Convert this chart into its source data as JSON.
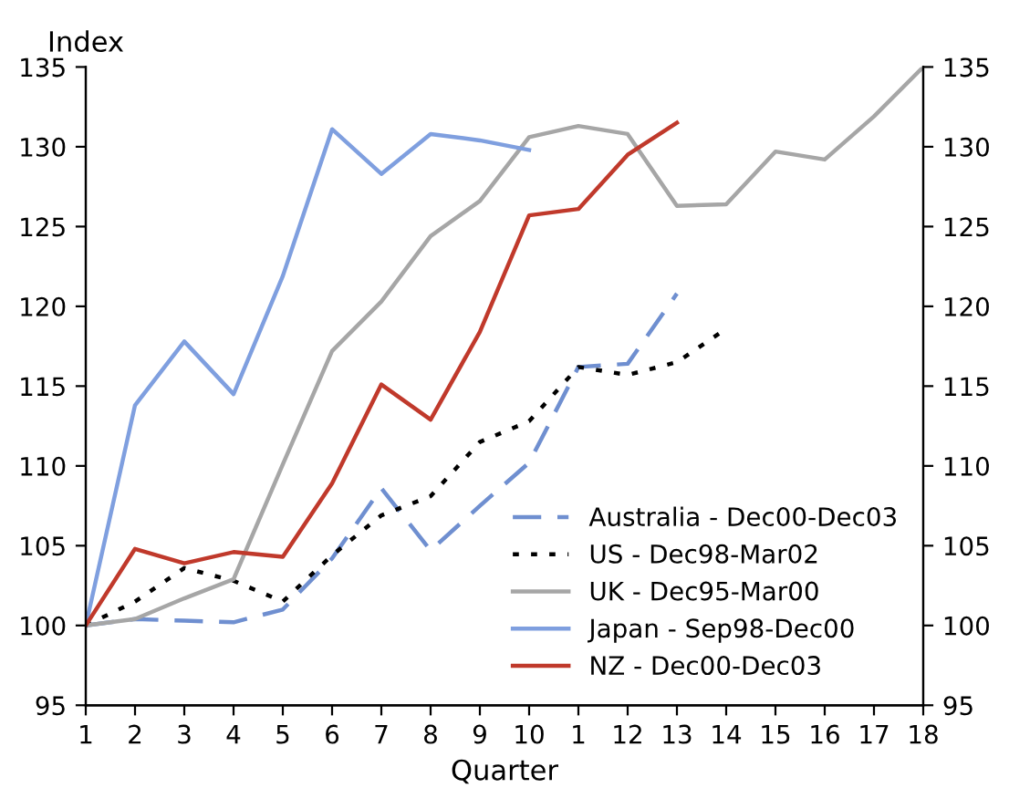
{
  "chart_data": {
    "type": "line",
    "ylabel": "Index",
    "xlabel": "Quarter",
    "legend": "bottom right",
    "grid": false,
    "categories": [
      "1",
      "2",
      "3",
      "4",
      "5",
      "6",
      "7",
      "8",
      "9",
      "10",
      "1",
      "12",
      "13",
      "14",
      "15",
      "16",
      "17",
      "18"
    ],
    "ylim": [
      95,
      135
    ],
    "yticks": [
      95,
      100,
      105,
      110,
      115,
      120,
      125,
      130,
      135
    ],
    "y2lim": [
      95,
      135
    ],
    "y2ticks": [
      95,
      100,
      105,
      110,
      115,
      120,
      125,
      130,
      135
    ],
    "series": [
      {
        "name": "Australia - Dec00-Dec03",
        "color": "#6f8fd0",
        "line_style": "dashed",
        "values": [
          100,
          100.4,
          100.3,
          100.2,
          101.0,
          104.2,
          108.6,
          104.7,
          107.5,
          110.2,
          116.2,
          116.4,
          120.8,
          null,
          null,
          null,
          null,
          null
        ]
      },
      {
        "name": "US - Dec98-Mar02",
        "color": "#000000",
        "line_style": "dotted",
        "values": [
          100,
          101.5,
          103.6,
          102.8,
          101.5,
          104.4,
          106.9,
          108.1,
          111.5,
          112.8,
          116.2,
          115.7,
          116.5,
          118.6,
          null,
          null,
          null,
          null
        ]
      },
      {
        "name": "UK - Dec95-Mar00",
        "color": "#a6a6a6",
        "line_style": "solid",
        "values": [
          100,
          100.4,
          101.7,
          102.9,
          110.1,
          117.2,
          120.3,
          124.4,
          126.6,
          130.6,
          131.3,
          130.8,
          126.3,
          126.4,
          129.7,
          129.2,
          131.9,
          135
        ]
      },
      {
        "name": "Japan - Sep98-Dec00",
        "color": "#7f9fdf",
        "line_style": "solid",
        "values": [
          100,
          113.8,
          117.8,
          114.5,
          121.9,
          131.1,
          128.3,
          130.8,
          130.4,
          129.8,
          null,
          null,
          null,
          null,
          null,
          null,
          null,
          null
        ]
      },
      {
        "name": "NZ - Dec00-Dec03",
        "color": "#c0392b",
        "line_style": "solid",
        "values": [
          100,
          104.8,
          103.9,
          104.6,
          104.3,
          108.9,
          115.1,
          112.9,
          118.4,
          125.7,
          126.1,
          129.5,
          131.5,
          null,
          null,
          null,
          null,
          null
        ]
      }
    ]
  }
}
